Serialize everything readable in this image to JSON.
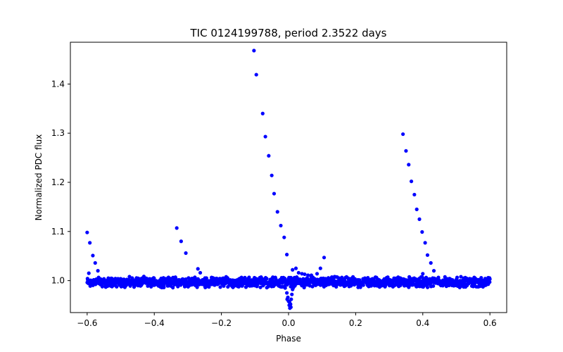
{
  "chart_data": {
    "type": "scatter",
    "title": "TIC 0124199788, period 2.3522 days",
    "xlabel": "Phase",
    "ylabel": "Normalized PDC flux",
    "xlim": [
      -0.65,
      0.65
    ],
    "ylim": [
      0.935,
      1.485
    ],
    "x_ticks": [
      -0.6,
      -0.4,
      -0.2,
      0.0,
      0.2,
      0.4,
      0.6
    ],
    "x_tick_labels": [
      "−0.6",
      "−0.4",
      "−0.2",
      "0.0",
      "0.2",
      "0.4",
      "0.6"
    ],
    "y_ticks": [
      1.0,
      1.1,
      1.2,
      1.3,
      1.4
    ],
    "y_tick_labels": [
      "1.0",
      "1.1",
      "1.2",
      "1.3",
      "1.4"
    ],
    "grid": false,
    "marker_color": "#0000ff",
    "series": [
      {
        "name": "baseline",
        "description": "dense band of points between phase -0.6 and 0.6",
        "x_range": [
          -0.6,
          0.6
        ],
        "y_center": 0.997,
        "y_spread": 0.012
      },
      {
        "name": "flare points",
        "points": [
          [
            -0.6,
            1.098
          ],
          [
            -0.592,
            1.077
          ],
          [
            -0.583,
            1.051
          ],
          [
            -0.576,
            1.036
          ],
          [
            -0.568,
            1.02
          ],
          [
            -0.595,
            1.015
          ],
          [
            -0.333,
            1.107
          ],
          [
            -0.32,
            1.08
          ],
          [
            -0.306,
            1.056
          ],
          [
            -0.27,
            1.024
          ],
          [
            -0.263,
            1.016
          ],
          [
            -0.103,
            1.468
          ],
          [
            -0.096,
            1.419
          ],
          [
            -0.077,
            1.34
          ],
          [
            -0.069,
            1.293
          ],
          [
            -0.059,
            1.254
          ],
          [
            -0.05,
            1.214
          ],
          [
            -0.043,
            1.177
          ],
          [
            -0.033,
            1.14
          ],
          [
            -0.023,
            1.112
          ],
          [
            -0.013,
            1.088
          ],
          [
            -0.005,
            1.053
          ],
          [
            0.012,
            1.022
          ],
          [
            0.022,
            1.025
          ],
          [
            0.03,
            1.016
          ],
          [
            0.04,
            1.014
          ],
          [
            0.048,
            1.013
          ],
          [
            0.058,
            1.011
          ],
          [
            0.068,
            1.011
          ],
          [
            0.085,
            1.014
          ],
          [
            0.095,
            1.025
          ],
          [
            0.106,
            1.047
          ],
          [
            0.341,
            1.298
          ],
          [
            0.35,
            1.264
          ],
          [
            0.358,
            1.236
          ],
          [
            0.366,
            1.202
          ],
          [
            0.375,
            1.175
          ],
          [
            0.382,
            1.145
          ],
          [
            0.39,
            1.125
          ],
          [
            0.398,
            1.099
          ],
          [
            0.407,
            1.077
          ],
          [
            0.414,
            1.052
          ],
          [
            0.424,
            1.036
          ],
          [
            0.433,
            1.02
          ],
          [
            0.4,
            1.014
          ]
        ]
      },
      {
        "name": "dip points",
        "points": [
          [
            -0.01,
            0.985
          ],
          [
            -0.005,
            0.975
          ],
          [
            -0.002,
            0.966
          ],
          [
            0.0,
            0.958
          ],
          [
            0.002,
            0.95
          ],
          [
            0.004,
            0.944
          ],
          [
            0.006,
            0.952
          ],
          [
            0.008,
            0.962
          ],
          [
            0.01,
            0.972
          ],
          [
            0.012,
            0.982
          ],
          [
            -0.004,
            0.962
          ],
          [
            0.003,
            0.956
          ],
          [
            0.007,
            0.946
          ]
        ]
      }
    ]
  }
}
